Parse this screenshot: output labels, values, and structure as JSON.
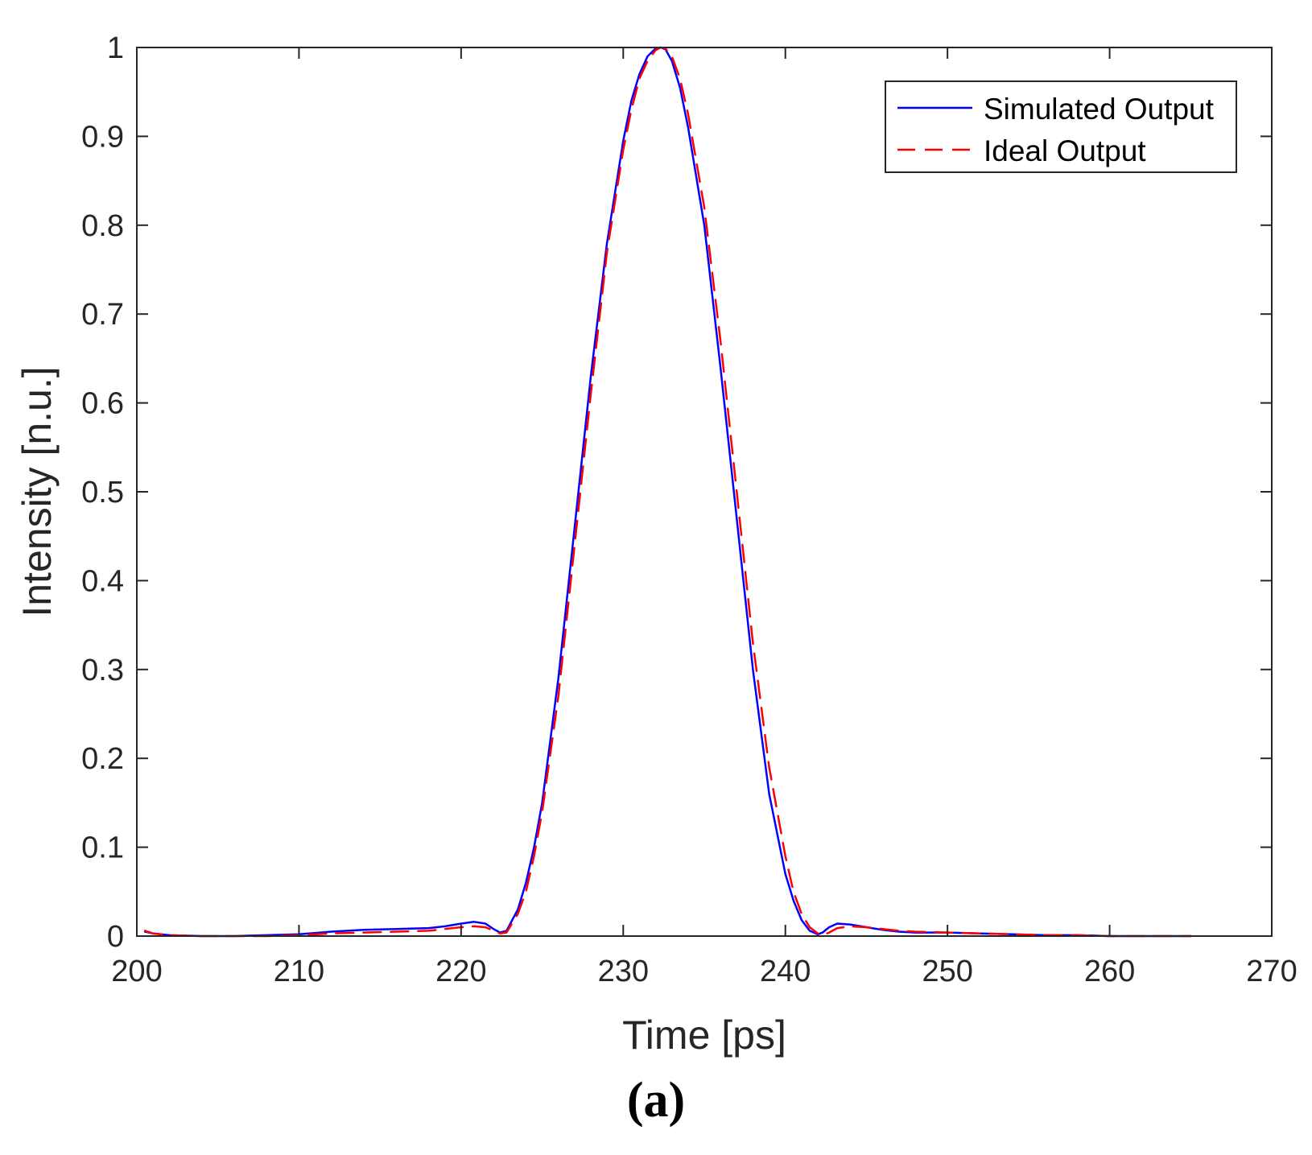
{
  "chart_data": {
    "type": "line",
    "title": "",
    "xlabel": "Time [ps]",
    "ylabel": "Intensity [n.u.]",
    "xlim": [
      200,
      270
    ],
    "ylim": [
      0,
      1
    ],
    "xticks": [
      200,
      210,
      220,
      230,
      240,
      250,
      260,
      270
    ],
    "yticks": [
      0,
      0.1,
      0.2,
      0.3,
      0.4,
      0.5,
      0.6,
      0.7,
      0.8,
      0.9,
      1
    ],
    "ytick_labels": [
      "0",
      "0.1",
      "0.2",
      "0.3",
      "0.4",
      "0.5",
      "0.6",
      "0.7",
      "0.8",
      "0.9",
      "1"
    ],
    "grid": false,
    "legend_position": "top-right",
    "series": [
      {
        "name": "Simulated Output",
        "color": "#0000ff",
        "style": "solid",
        "x": [
          200.5,
          201,
          202,
          204,
          206,
          208,
          210,
          212,
          214,
          216,
          218,
          219,
          220,
          220.8,
          221.5,
          222,
          222.4,
          222.8,
          223.5,
          224,
          224.5,
          225,
          226,
          227,
          228,
          229,
          230,
          230.5,
          231,
          231.5,
          232,
          232.3,
          232.6,
          233,
          233.5,
          234,
          235,
          236,
          237,
          238,
          239,
          240,
          240.5,
          241,
          241.5,
          242,
          242.3,
          242.7,
          243.2,
          244,
          245,
          246,
          247,
          248,
          250,
          252,
          254,
          256,
          258,
          260,
          262,
          265
        ],
        "y": [
          0.005,
          0.003,
          0.001,
          0.0,
          0.0,
          0.001,
          0.002,
          0.005,
          0.007,
          0.008,
          0.009,
          0.011,
          0.014,
          0.016,
          0.014,
          0.008,
          0.004,
          0.006,
          0.03,
          0.06,
          0.1,
          0.15,
          0.29,
          0.46,
          0.63,
          0.78,
          0.895,
          0.94,
          0.97,
          0.99,
          0.999,
          1.0,
          0.998,
          0.985,
          0.955,
          0.91,
          0.8,
          0.64,
          0.47,
          0.3,
          0.16,
          0.07,
          0.04,
          0.018,
          0.006,
          0.002,
          0.004,
          0.01,
          0.014,
          0.013,
          0.01,
          0.007,
          0.005,
          0.004,
          0.004,
          0.003,
          0.002,
          0.001,
          0.001,
          0.0,
          0.0,
          0.0
        ]
      },
      {
        "name": "Ideal Output",
        "color": "#ff0000",
        "style": "dashed",
        "x": [
          200.5,
          201,
          202,
          204,
          206,
          208,
          210,
          212,
          214,
          216,
          218,
          219,
          220,
          220.8,
          221.5,
          222,
          222.4,
          222.8,
          223.5,
          224,
          224.5,
          225,
          226,
          227,
          228,
          229,
          230,
          230.5,
          231,
          231.5,
          232,
          232.3,
          232.6,
          233,
          233.5,
          234,
          235,
          236,
          237,
          238,
          239,
          240,
          240.5,
          241,
          241.5,
          242,
          242.3,
          242.7,
          243.2,
          244,
          245,
          246,
          247,
          248,
          250,
          252,
          254,
          256,
          258,
          260,
          262,
          265
        ],
        "y": [
          0.006,
          0.003,
          0.001,
          0.0,
          0.0,
          0.0,
          0.001,
          0.003,
          0.004,
          0.005,
          0.006,
          0.008,
          0.01,
          0.011,
          0.01,
          0.006,
          0.003,
          0.004,
          0.025,
          0.05,
          0.09,
          0.14,
          0.27,
          0.44,
          0.61,
          0.77,
          0.885,
          0.93,
          0.965,
          0.985,
          0.997,
          1.0,
          0.999,
          0.99,
          0.965,
          0.925,
          0.82,
          0.67,
          0.5,
          0.33,
          0.19,
          0.09,
          0.05,
          0.025,
          0.01,
          0.003,
          0.001,
          0.004,
          0.009,
          0.011,
          0.01,
          0.008,
          0.006,
          0.005,
          0.004,
          0.003,
          0.002,
          0.001,
          0.001,
          0.0,
          0.0,
          0.0
        ]
      }
    ]
  },
  "panel_label": "(a)"
}
